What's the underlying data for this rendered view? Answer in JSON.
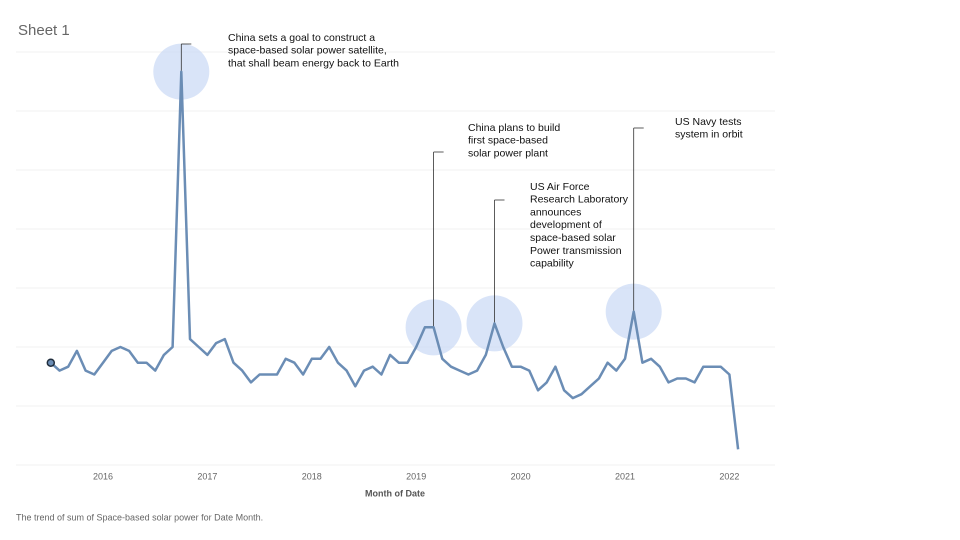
{
  "chart_data": {
    "type": "line",
    "title": "Sheet 1",
    "x_label": "Month of Date",
    "caption": "The trend of sum of Space-based solar power for Date Month.",
    "x": [
      "2015-07",
      "2015-08",
      "2015-09",
      "2015-10",
      "2015-11",
      "2015-12",
      "2016-01",
      "2016-02",
      "2016-03",
      "2016-04",
      "2016-05",
      "2016-06",
      "2016-07",
      "2016-08",
      "2016-09",
      "2016-10",
      "2016-11",
      "2016-12",
      "2017-01",
      "2017-02",
      "2017-03",
      "2017-04",
      "2017-05",
      "2017-06",
      "2017-07",
      "2017-08",
      "2017-09",
      "2017-10",
      "2017-11",
      "2017-12",
      "2018-01",
      "2018-02",
      "2018-03",
      "2018-04",
      "2018-05",
      "2018-06",
      "2018-07",
      "2018-08",
      "2018-09",
      "2018-10",
      "2018-11",
      "2018-12",
      "2019-01",
      "2019-02",
      "2019-03",
      "2019-04",
      "2019-05",
      "2019-06",
      "2019-07",
      "2019-08",
      "2019-09",
      "2019-10",
      "2019-11",
      "2019-12",
      "2020-01",
      "2020-02",
      "2020-03",
      "2020-04",
      "2020-05",
      "2020-06",
      "2020-07",
      "2020-08",
      "2020-09",
      "2020-10",
      "2020-11",
      "2020-12",
      "2021-01",
      "2021-02",
      "2021-03",
      "2021-04",
      "2021-05",
      "2021-06",
      "2021-07",
      "2021-08",
      "2021-09",
      "2021-10",
      "2021-11",
      "2021-12",
      "2022-01",
      "2022-02"
    ],
    "series": [
      {
        "name": "Space-based solar power",
        "color": "#6b8db5",
        "values": [
          26,
          24,
          25,
          29,
          24,
          23,
          26,
          29,
          30,
          29,
          26,
          26,
          24,
          28,
          30,
          100,
          32,
          30,
          28,
          31,
          32,
          26,
          24,
          21,
          23,
          23,
          23,
          27,
          26,
          23,
          27,
          27,
          30,
          26,
          24,
          20,
          24,
          25,
          23,
          28,
          26,
          26,
          30,
          35,
          35,
          27,
          25,
          24,
          23,
          24,
          28,
          36,
          30,
          25,
          25,
          24,
          19,
          21,
          25,
          19,
          17,
          18,
          20,
          22,
          26,
          24,
          27,
          39,
          26,
          27,
          25,
          21,
          22,
          22,
          21,
          25,
          25,
          25,
          23,
          4
        ]
      }
    ],
    "ylim": [
      0,
      105
    ],
    "yticks": [
      0,
      15,
      30,
      45,
      60,
      75,
      90,
      105
    ],
    "xlim": [
      2015.3,
      2022.6
    ],
    "xticks": [
      2016,
      2017,
      2018,
      2019,
      2020,
      2021,
      2022
    ],
    "grid": true,
    "annotations": [
      {
        "x": "2016-10",
        "lines": [
          "China sets a goal to construct a",
          "space-based solar power satellite,",
          "that shall beam energy back to Earth"
        ]
      },
      {
        "x": "2019-03",
        "lines": [
          "China plans to build",
          "first space-based",
          "solar power plant"
        ]
      },
      {
        "x": "2019-10",
        "lines": [
          "US Air Force",
          "Research Laboratory",
          "announces",
          "development of",
          "space-based solar",
          "Power transmission",
          "capability"
        ]
      },
      {
        "x": "2021-02",
        "lines": [
          "US Navy tests",
          "system in orbit"
        ]
      }
    ]
  }
}
